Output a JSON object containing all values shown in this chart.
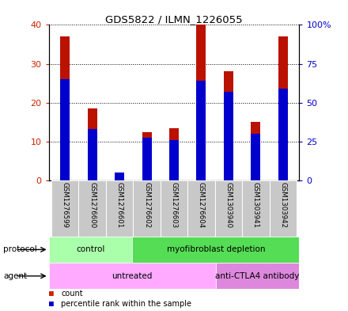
{
  "title": "GDS5822 / ILMN_1226055",
  "samples": [
    "GSM1276599",
    "GSM1276600",
    "GSM1276601",
    "GSM1276602",
    "GSM1276603",
    "GSM1276604",
    "GSM1303940",
    "GSM1303941",
    "GSM1303942"
  ],
  "counts": [
    37,
    18.5,
    1,
    12.5,
    13.5,
    40,
    28,
    15,
    37
  ],
  "percentile_ranks": [
    65,
    33,
    5,
    27.5,
    26,
    64,
    57,
    30,
    59
  ],
  "ylim_left": [
    0,
    40
  ],
  "ylim_right": [
    0,
    100
  ],
  "yticks_left": [
    0,
    10,
    20,
    30,
    40
  ],
  "yticks_right": [
    0,
    25,
    50,
    75,
    100
  ],
  "ytick_labels_right": [
    "0",
    "25",
    "50",
    "75",
    "100%"
  ],
  "bar_color": "#bb1100",
  "percentile_color": "#0000cc",
  "bar_width": 0.35,
  "percentile_bar_width": 0.35,
  "protocol_groups": [
    {
      "label": "control",
      "start": 0,
      "end": 3,
      "color": "#aaffaa"
    },
    {
      "label": "myofibroblast depletion",
      "start": 3,
      "end": 9,
      "color": "#55dd55"
    }
  ],
  "agent_groups": [
    {
      "label": "untreated",
      "start": 0,
      "end": 6,
      "color": "#ffaaff"
    },
    {
      "label": "anti-CTLA4 antibody",
      "start": 6,
      "end": 9,
      "color": "#dd88dd"
    }
  ],
  "legend_count_color": "#cc2200",
  "legend_pct_color": "#0000cc",
  "grid_color": "black",
  "tick_label_color_left": "#cc2200",
  "tick_label_color_right": "#0000cc",
  "bg_bar_color": "#c8c8c8"
}
